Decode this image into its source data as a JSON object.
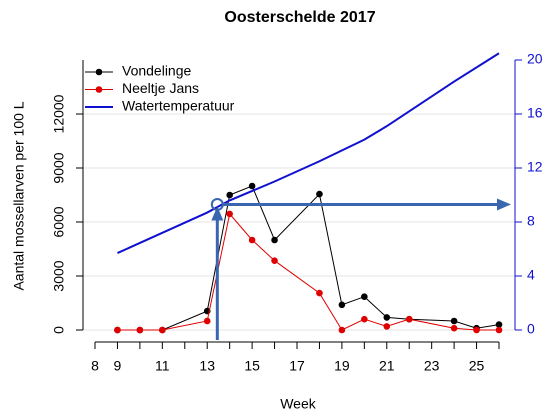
{
  "chart_data": {
    "type": "line",
    "title": "Oosterschelde 2017",
    "x_label": "Week",
    "y_label": "Aantal mossellarven per 100 L",
    "xlim": [
      8,
      26
    ],
    "xticks": [
      8,
      9,
      11,
      13,
      15,
      17,
      19,
      21,
      23,
      25
    ],
    "xminorticks": [
      10,
      12,
      14,
      16,
      18,
      20,
      22,
      24,
      26
    ],
    "ylim": [
      0,
      15000
    ],
    "yticks": [
      0,
      3000,
      6000,
      9000,
      12000
    ],
    "y2lim": [
      0,
      20
    ],
    "y2ticks": [
      0,
      4,
      8,
      12,
      16,
      20
    ],
    "y2color": "#1010d0",
    "legend": "top-left",
    "series": [
      {
        "name": "Vondelinge",
        "color": "#000000",
        "markers": true,
        "x": [
          9,
          10,
          11,
          13,
          14,
          15,
          16,
          18,
          19,
          20,
          21,
          22,
          24,
          25,
          26
        ],
        "values": [
          0,
          0,
          0,
          1050,
          7500,
          8000,
          5000,
          7550,
          1400,
          1850,
          700,
          600,
          500,
          100,
          300
        ]
      },
      {
        "name": "Neeltje Jans",
        "color": "#e00000",
        "markers": true,
        "x": [
          9,
          10,
          11,
          13,
          14,
          15,
          16,
          18,
          19,
          20,
          21,
          22,
          24,
          25,
          26
        ],
        "values": [
          0,
          0,
          0,
          500,
          6450,
          5000,
          3850,
          2050,
          0,
          600,
          200,
          600,
          100,
          0,
          0
        ]
      },
      {
        "name": "Watertemperatuur",
        "color": "#1010d0",
        "markers": false,
        "axis": "y2",
        "x": [
          9,
          11,
          13,
          14,
          16,
          18,
          20,
          21,
          22,
          24,
          26
        ],
        "values": [
          5.7,
          7.2,
          8.7,
          9.6,
          11,
          12.5,
          14.1,
          15.1,
          16.2,
          18.4,
          20.5
        ]
      }
    ],
    "annotation": {
      "x": 13.45,
      "y2": 9.3,
      "color": "#3a66b0"
    }
  }
}
